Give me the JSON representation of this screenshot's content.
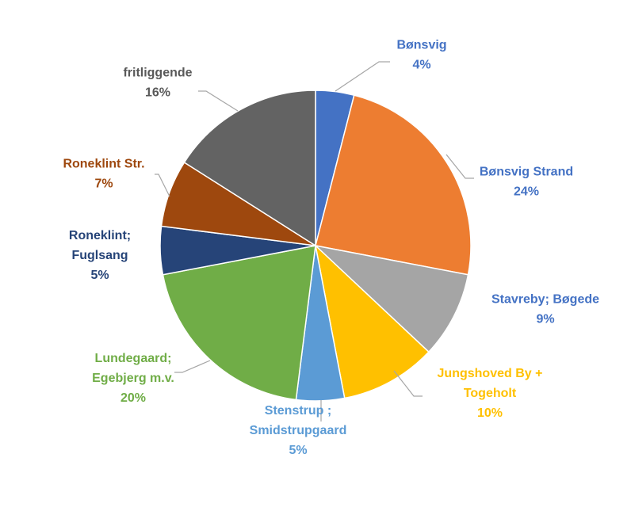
{
  "chart_data": {
    "type": "pie",
    "title": "",
    "slices": [
      {
        "label_lines": [
          "Bønsvig"
        ],
        "pct_label": "4%",
        "value": 4,
        "color": "#4472C4",
        "label_color": "#4472C4"
      },
      {
        "label_lines": [
          "Bønsvig Strand"
        ],
        "pct_label": "24%",
        "value": 24,
        "color": "#ED7D31",
        "label_color": "#4472C4"
      },
      {
        "label_lines": [
          "Stavreby; Bøgede"
        ],
        "pct_label": "9%",
        "value": 9,
        "color": "#A5A5A5",
        "label_color": "#4472C4"
      },
      {
        "label_lines": [
          "Jungshoved By +",
          "Togeholt"
        ],
        "pct_label": "10%",
        "value": 10,
        "color": "#FFC000",
        "label_color": "#FFC000"
      },
      {
        "label_lines": [
          "Stenstrup ;",
          "Smidstrupgaard"
        ],
        "pct_label": "5%",
        "value": 5,
        "color": "#5B9BD5",
        "label_color": "#5B9BD5"
      },
      {
        "label_lines": [
          "Lundegaard;",
          "Egebjerg m.v."
        ],
        "pct_label": "20%",
        "value": 20,
        "color": "#70AD47",
        "label_color": "#70AD47"
      },
      {
        "label_lines": [
          "Roneklint;",
          "Fuglsang"
        ],
        "pct_label": "5%",
        "value": 5,
        "color": "#264478",
        "label_color": "#264478"
      },
      {
        "label_lines": [
          "Roneklint Str."
        ],
        "pct_label": "7%",
        "value": 7,
        "color": "#9E480E",
        "label_color": "#9E480E"
      },
      {
        "label_lines": [
          "fritliggende"
        ],
        "pct_label": "16%",
        "value": 16,
        "color": "#636363",
        "label_color": "#595959"
      }
    ],
    "legend": "none",
    "leader_line_color": "#A6A6A6"
  }
}
